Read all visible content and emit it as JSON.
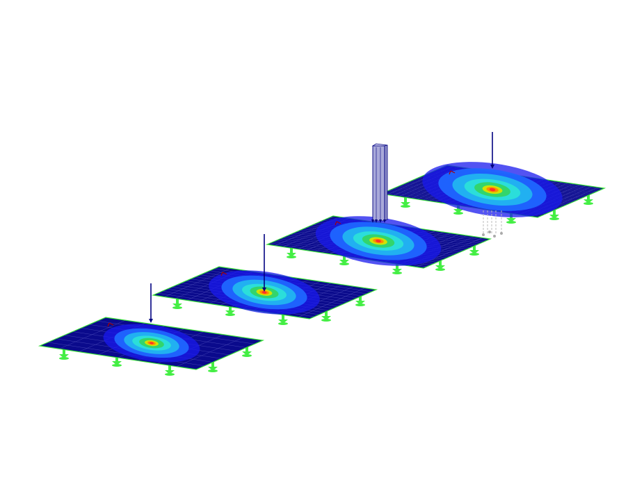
{
  "view": {
    "background": "#ffffff",
    "plate_count": 4,
    "plate_color": "#0a0a8c",
    "plate_edge_color": "#33dd33",
    "mesh_color": "#6f6fd0",
    "load_arrow_color": "#000080",
    "support_color": "#44ee44",
    "column_color": "#a9a9d9",
    "column_edge_color": "#000080",
    "contour_palette": [
      "#1a1aee",
      "#1f66ff",
      "#22b4f0",
      "#2ce0d8",
      "#33d466",
      "#d8e400",
      "#ff8800",
      "#ff2a2a"
    ]
  }
}
